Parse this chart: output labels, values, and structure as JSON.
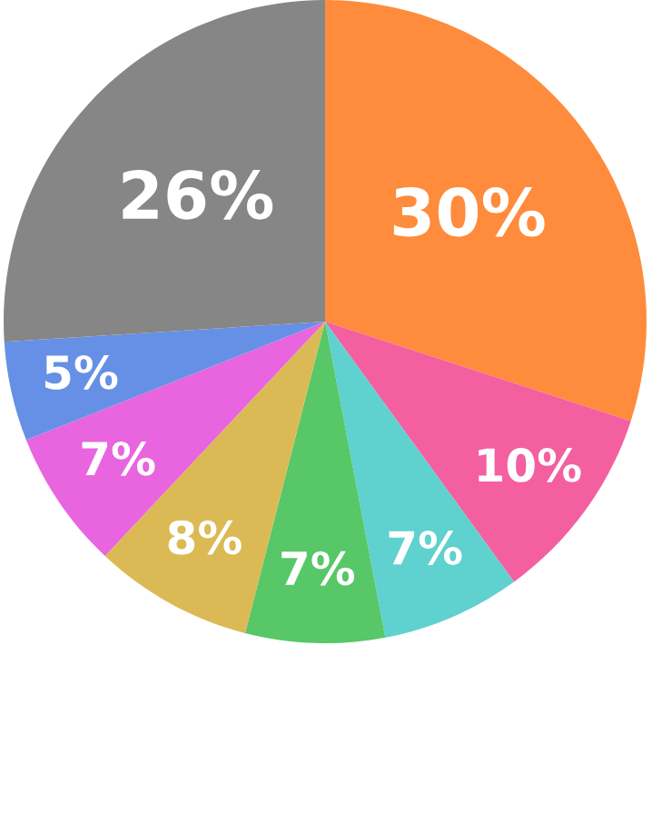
{
  "chart_data": {
    "type": "pie",
    "categories": [
      null,
      null,
      null,
      null,
      null,
      null,
      null,
      null
    ],
    "values": [
      30,
      10,
      7,
      7,
      8,
      7,
      5,
      26
    ],
    "colors": [
      "#fe8c3c",
      "#f45fa0",
      "#5fd1cf",
      "#57c768",
      "#dbba55",
      "#e865df",
      "#6590e6",
      "#868686"
    ],
    "value_labels": [
      "30%",
      "10%",
      "7%",
      "7%",
      "8%",
      "7%",
      "5%",
      "26%"
    ]
  }
}
